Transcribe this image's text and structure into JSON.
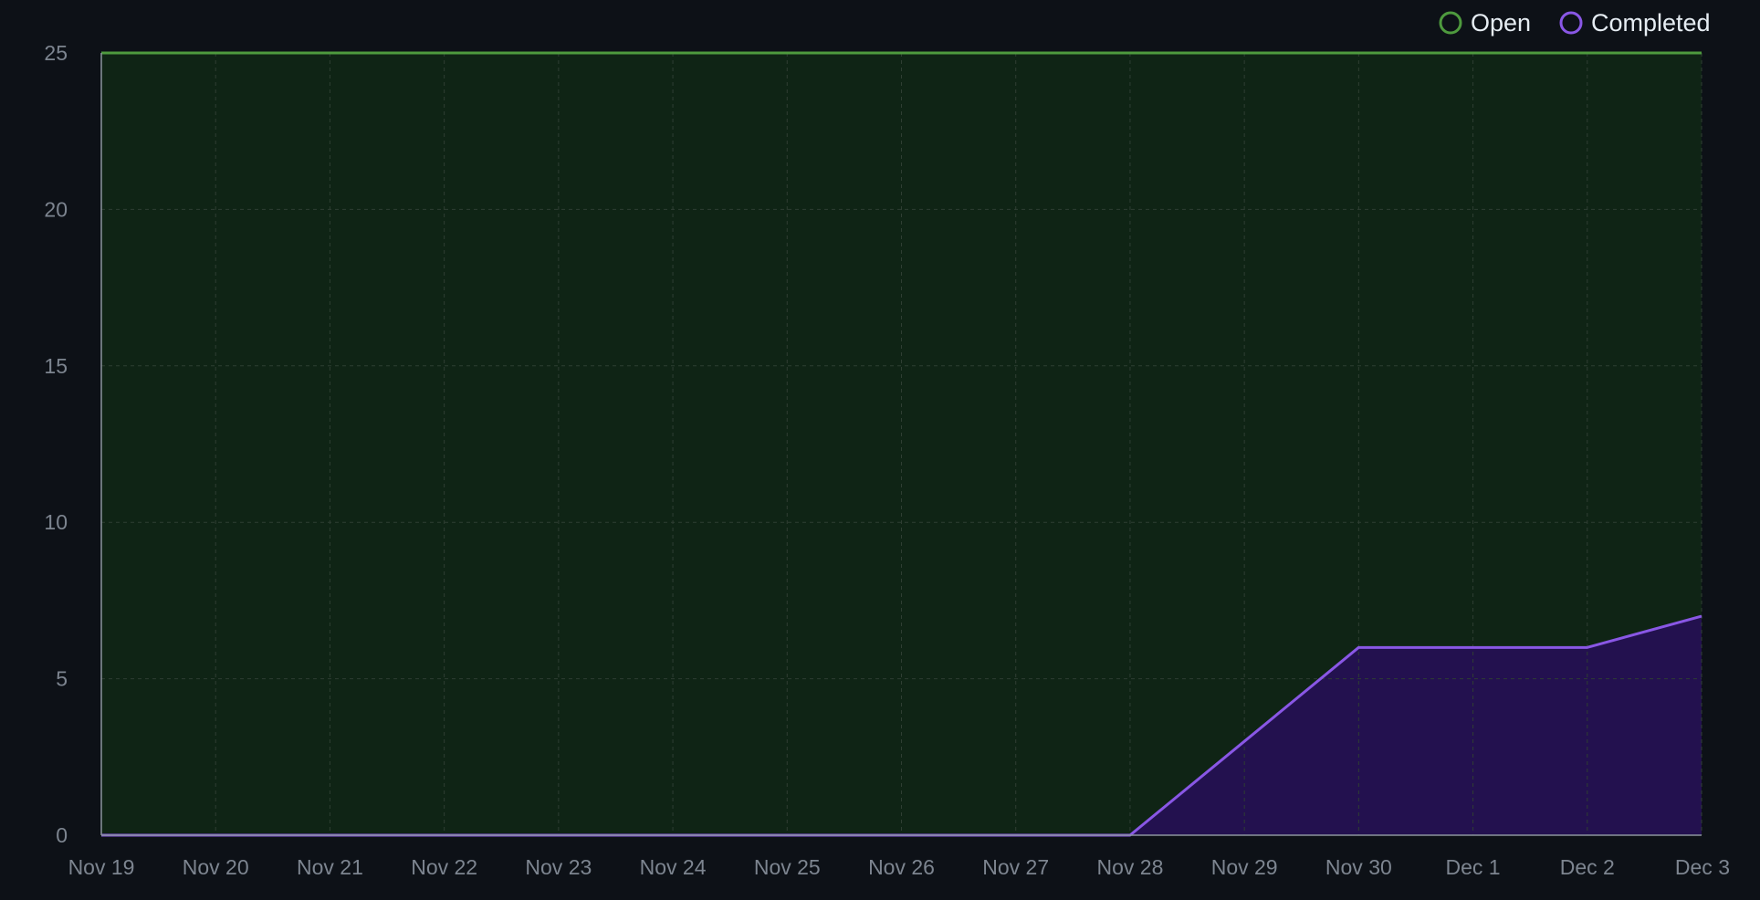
{
  "chart_data": {
    "type": "area",
    "x": [
      "Nov 19",
      "Nov 20",
      "Nov 21",
      "Nov 22",
      "Nov 23",
      "Nov 24",
      "Nov 25",
      "Nov 26",
      "Nov 27",
      "Nov 28",
      "Nov 29",
      "Nov 30",
      "Dec 1",
      "Dec 2",
      "Dec 3"
    ],
    "series": [
      {
        "name": "Open",
        "color": "#4e9a3e",
        "fill": "#0f2415",
        "values": [
          25,
          25,
          25,
          25,
          25,
          25,
          25,
          25,
          25,
          25,
          25,
          25,
          25,
          25,
          25
        ]
      },
      {
        "name": "Completed",
        "color": "#8957e5",
        "fill": "#23114f",
        "values": [
          0,
          0,
          0,
          0,
          0,
          0,
          0,
          0,
          0,
          0,
          3,
          6,
          6,
          6,
          7
        ]
      }
    ],
    "yticks": [
      0,
      5,
      10,
      15,
      20,
      25
    ],
    "ylim": [
      0,
      25
    ],
    "grid": true,
    "legend": "top-right",
    "title": "",
    "xlabel": "",
    "ylabel": ""
  }
}
